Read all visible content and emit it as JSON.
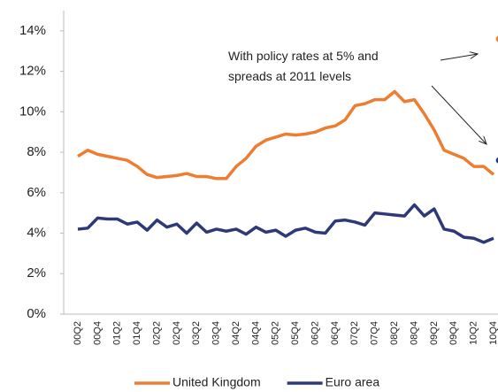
{
  "chart_data": {
    "type": "line",
    "categories": [
      "00Q2",
      null,
      "00Q4",
      null,
      "01Q2",
      null,
      "01Q4",
      null,
      "02Q2",
      null,
      "02Q4",
      null,
      "03Q2",
      null,
      "03Q4",
      null,
      "04Q2",
      null,
      "04Q4",
      null,
      "05Q2",
      null,
      "05Q4",
      null,
      "06Q2",
      null,
      "06Q4",
      null,
      "07Q2",
      null,
      "07Q4",
      null,
      "08Q2",
      null,
      "08Q4",
      null,
      "09Q2",
      null,
      "09Q4",
      null,
      "10Q2",
      null,
      "10Q4"
    ],
    "series": [
      {
        "name": "United Kingdom",
        "color": "#ed7d31",
        "values": [
          7.8,
          8.1,
          7.9,
          7.8,
          7.7,
          7.6,
          7.3,
          6.9,
          6.75,
          6.8,
          6.85,
          6.95,
          6.8,
          6.8,
          6.7,
          6.7,
          7.3,
          7.7,
          8.3,
          8.6,
          8.75,
          8.9,
          8.85,
          8.9,
          9.0,
          9.2,
          9.3,
          9.6,
          10.3,
          10.4,
          10.6,
          10.6,
          11.0,
          10.5,
          10.6,
          9.9,
          9.1,
          8.1,
          7.9,
          7.7,
          7.3,
          7.3,
          6.9
        ],
        "scenario_value": 13.6
      },
      {
        "name": "Euro area",
        "color": "#2e3a78",
        "values": [
          4.2,
          4.25,
          4.75,
          4.7,
          4.7,
          4.45,
          4.55,
          4.15,
          4.65,
          4.3,
          4.45,
          4.0,
          4.5,
          4.05,
          4.2,
          4.1,
          4.2,
          3.95,
          4.3,
          4.05,
          4.15,
          3.85,
          4.15,
          4.25,
          4.05,
          4.0,
          4.6,
          4.65,
          4.55,
          4.4,
          5.0,
          4.95,
          4.9,
          4.85,
          5.4,
          4.85,
          5.2,
          4.2,
          4.1,
          3.8,
          3.75,
          3.55,
          3.75
        ],
        "scenario_value": 7.6
      }
    ],
    "ylim": [
      0,
      15
    ],
    "yticks": [
      {
        "value": 0,
        "label": "0%"
      },
      {
        "value": 2,
        "label": "2%"
      },
      {
        "value": 4,
        "label": "4%"
      },
      {
        "value": 6,
        "label": "6%"
      },
      {
        "value": 8,
        "label": "8%"
      },
      {
        "value": 10,
        "label": "10%"
      },
      {
        "value": 12,
        "label": "12%"
      },
      {
        "value": 14,
        "label": "14%"
      }
    ],
    "annotation": [
      "With policy rates at 5% and",
      "spreads at 2011 levels"
    ],
    "grid": false,
    "legend": "bottom"
  }
}
